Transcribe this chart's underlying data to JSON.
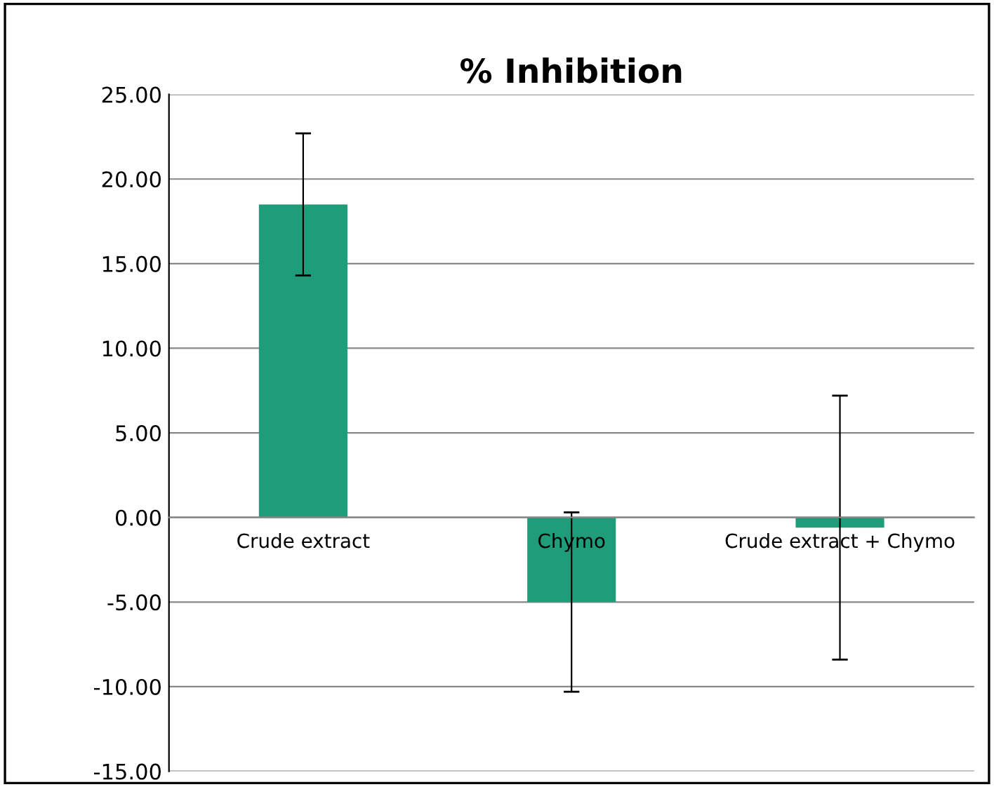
{
  "chart_data": {
    "type": "bar",
    "title": "% Inhibition",
    "categories": [
      "Crude extract",
      "Chymo",
      "Crude extract + Chymo"
    ],
    "values": [
      18.5,
      -5.0,
      -0.6
    ],
    "errors": [
      4.2,
      5.3,
      7.8
    ],
    "color": "#1f9c7a",
    "ylim": [
      -15,
      25
    ],
    "yticks": [
      {
        "value": -15,
        "label": "-15.00"
      },
      {
        "value": -10,
        "label": "-10.00"
      },
      {
        "value": -5,
        "label": "-5.00"
      },
      {
        "value": 0,
        "label": "0.00"
      },
      {
        "value": 5,
        "label": "5.00"
      },
      {
        "value": 10,
        "label": "10.00"
      },
      {
        "value": 15,
        "label": "15.00"
      },
      {
        "value": 20,
        "label": "20.00"
      },
      {
        "value": 25,
        "label": "25.00"
      }
    ],
    "grid": "y"
  }
}
